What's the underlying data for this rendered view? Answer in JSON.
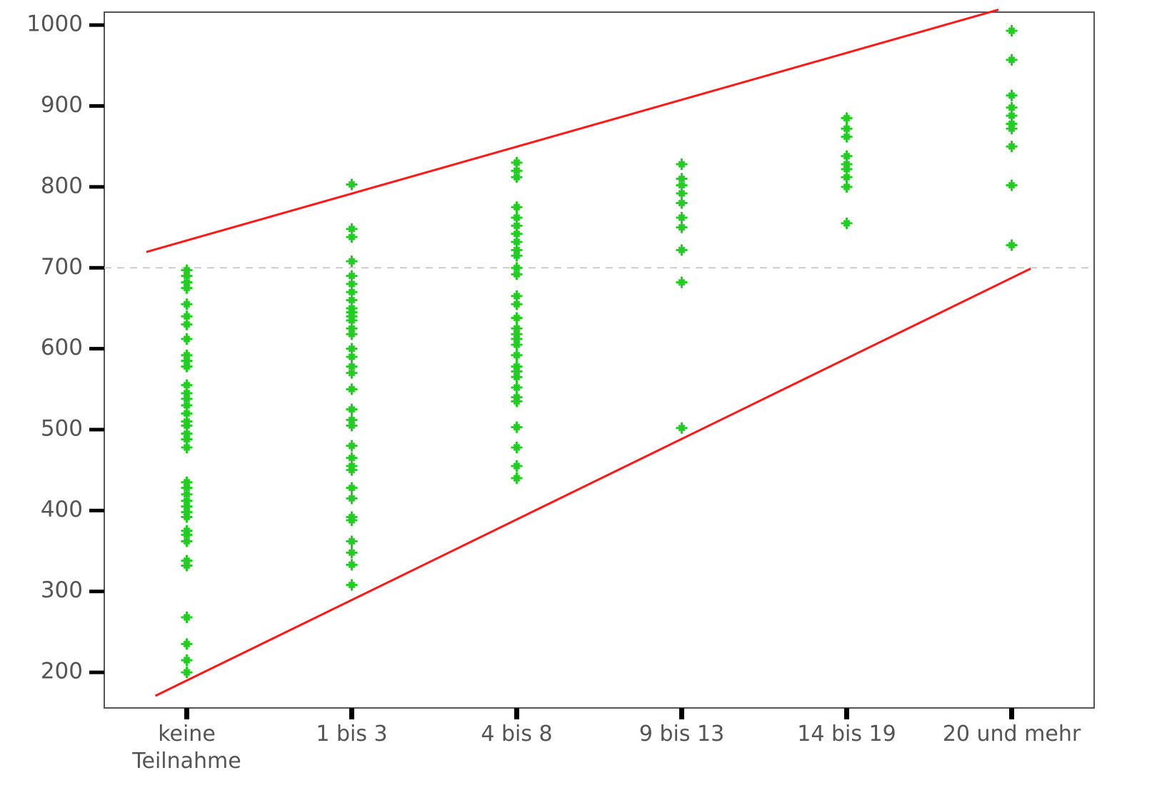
{
  "chart_data": {
    "type": "strip",
    "categories": [
      "keine Teilnahme",
      "1 bis 3",
      "4 bis 8",
      "9 bis 13",
      "14 bis 19",
      "20 und mehr"
    ],
    "values": [
      [
        697,
        690,
        682,
        675,
        655,
        640,
        630,
        612,
        592,
        585,
        578,
        555,
        545,
        538,
        530,
        520,
        510,
        505,
        495,
        488,
        478,
        435,
        428,
        420,
        412,
        405,
        398,
        392,
        375,
        370,
        362,
        338,
        332,
        268,
        235,
        215,
        200
      ],
      [
        803,
        748,
        738,
        708,
        690,
        680,
        670,
        660,
        650,
        645,
        640,
        635,
        625,
        618,
        600,
        590,
        578,
        570,
        550,
        525,
        512,
        505,
        480,
        465,
        455,
        450,
        428,
        415,
        392,
        388,
        362,
        348,
        333,
        308
      ],
      [
        830,
        820,
        812,
        775,
        762,
        752,
        742,
        732,
        722,
        715,
        700,
        692,
        665,
        655,
        638,
        625,
        618,
        612,
        605,
        592,
        578,
        572,
        565,
        552,
        540,
        535,
        503,
        478,
        455,
        440
      ],
      [
        828,
        810,
        802,
        792,
        780,
        762,
        750,
        722,
        682,
        502
      ],
      [
        885,
        872,
        862,
        838,
        828,
        822,
        812,
        800,
        755
      ],
      [
        993,
        957,
        913,
        898,
        888,
        878,
        872,
        850,
        802,
        728
      ]
    ],
    "color": "#22cc22",
    "ylim": [
      156,
      1016
    ],
    "yticks": [
      200,
      300,
      400,
      500,
      600,
      700,
      800,
      900,
      1000
    ],
    "reference_line": 700,
    "lines": [
      {
        "color": "#ff1a1a",
        "x": [
          -0.245,
          4.92
        ],
        "y": [
          719.6,
          1019
        ]
      },
      {
        "color": "#ff1a1a",
        "x": [
          -0.19,
          5.115
        ],
        "y": [
          171,
          699
        ]
      }
    ]
  }
}
